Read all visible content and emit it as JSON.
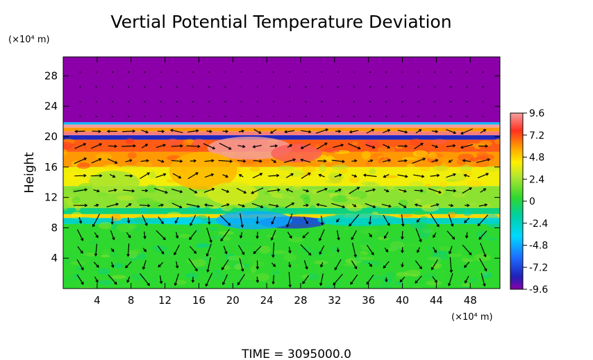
{
  "chart_data": {
    "type": "heatmap",
    "title": "Vertial Potential Temperature Deviation",
    "ylabel": "Height",
    "y_unit": "(×10⁴ m)",
    "x_unit": "(×10⁴ m)",
    "xlim": [
      0,
      51.5
    ],
    "ylim": [
      0,
      30.5
    ],
    "x_ticks": [
      "4",
      "8",
      "12",
      "16",
      "20",
      "24",
      "28",
      "32",
      "36",
      "40",
      "44",
      "48"
    ],
    "y_ticks": [
      "4",
      "8",
      "12",
      "16",
      "20",
      "24",
      "28"
    ],
    "colorbar": {
      "ticks": [
        "9.6",
        "7.2",
        "4.8",
        "2.4",
        "0",
        "-2.4",
        "-4.8",
        "-7.2",
        "-9.6"
      ],
      "range": [
        -9.6,
        9.6
      ]
    },
    "field_layers": [
      {
        "from": 0,
        "to": 8.5,
        "value": 0.4
      },
      {
        "from": 8.5,
        "to": 9.3,
        "value": -2.4
      },
      {
        "from": 9.3,
        "to": 9.8,
        "value": 4.8
      },
      {
        "from": 9.8,
        "to": 10.6,
        "value": -1.0
      },
      {
        "from": 10.6,
        "to": 13.5,
        "value": 2.0
      },
      {
        "from": 13.5,
        "to": 16.0,
        "value": 4.0
      },
      {
        "from": 16.0,
        "to": 18.0,
        "value": 6.0
      },
      {
        "from": 18.0,
        "to": 19.6,
        "value": 7.0
      },
      {
        "from": 19.6,
        "to": 20.2,
        "value": -8.0
      },
      {
        "from": 20.2,
        "to": 20.7,
        "value": 9.0
      },
      {
        "from": 20.7,
        "to": 21.2,
        "value": 6.0
      },
      {
        "from": 21.2,
        "to": 21.6,
        "value": 9.6
      },
      {
        "from": 21.6,
        "to": 21.9,
        "value": -4.5
      },
      {
        "from": 21.9,
        "to": 30.5,
        "value": -9.6
      }
    ],
    "anomalies": [
      {
        "x": 27.0,
        "y": 8.7,
        "rx": 4.0,
        "ry": 0.8,
        "value": -7.5
      },
      {
        "x": 22.5,
        "y": 9.0,
        "rx": 4.5,
        "ry": 1.2,
        "value": -4.8
      },
      {
        "x": 14.0,
        "y": 8.9,
        "rx": 2.5,
        "ry": 0.5,
        "value": -3.5
      },
      {
        "x": 35.0,
        "y": 9.0,
        "rx": 5.0,
        "ry": 0.8,
        "value": -2.4
      },
      {
        "x": 22.0,
        "y": 18.5,
        "rx": 5.0,
        "ry": 1.5,
        "value": 9.6
      },
      {
        "x": 27.5,
        "y": 17.8,
        "rx": 3.0,
        "ry": 1.2,
        "value": 8.5
      },
      {
        "x": 16.5,
        "y": 15.5,
        "rx": 4.0,
        "ry": 2.5,
        "value": 5.5
      },
      {
        "x": 20.0,
        "y": 12.5,
        "rx": 3.0,
        "ry": 1.5,
        "value": 3.5
      },
      {
        "x": 6.0,
        "y": 14.0,
        "rx": 3.0,
        "ry": 1.5,
        "value": 2.4
      }
    ],
    "time_label": "TIME  =  3095000.0"
  }
}
